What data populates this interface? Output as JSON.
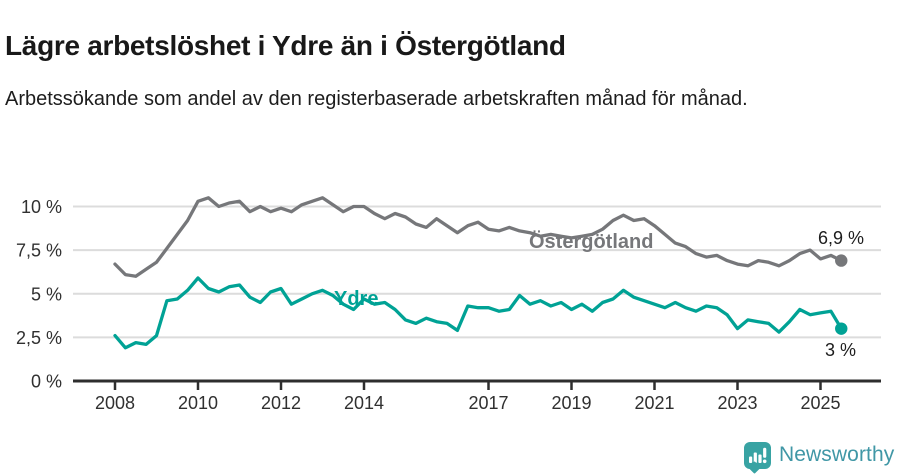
{
  "header": {
    "title": "Lägre arbetslöshet i Ydre än i Östergötland",
    "subtitle": "Arbetssökande som andel av den registerbaserade arbetskraften månad för månad."
  },
  "chart_data": {
    "type": "line",
    "unit": "%",
    "grid": "horizontal",
    "legend_position": "inline-labels",
    "ylim": [
      0,
      11
    ],
    "xlim": [
      2008,
      2025.5
    ],
    "yticks": [
      {
        "value": 0,
        "label": "0 %"
      },
      {
        "value": 2.5,
        "label": "2,5 %"
      },
      {
        "value": 5,
        "label": "5 %"
      },
      {
        "value": 7.5,
        "label": "7,5 %"
      },
      {
        "value": 10,
        "label": "10 %"
      }
    ],
    "xticks": [
      {
        "value": 2008,
        "label": "2008"
      },
      {
        "value": 2010,
        "label": "2010"
      },
      {
        "value": 2012,
        "label": "2012"
      },
      {
        "value": 2014,
        "label": "2014"
      },
      {
        "value": 2017,
        "label": "2017"
      },
      {
        "value": 2019,
        "label": "2019"
      },
      {
        "value": 2021,
        "label": "2021"
      },
      {
        "value": 2023,
        "label": "2023"
      },
      {
        "value": 2025,
        "label": "2025"
      }
    ],
    "x": [
      2008,
      2008.25,
      2008.5,
      2008.75,
      2009,
      2009.25,
      2009.5,
      2009.75,
      2010,
      2010.25,
      2010.5,
      2010.75,
      2011,
      2011.25,
      2011.5,
      2011.75,
      2012,
      2012.25,
      2012.5,
      2012.75,
      2013,
      2013.25,
      2013.5,
      2013.75,
      2014,
      2014.25,
      2014.5,
      2014.75,
      2015,
      2015.25,
      2015.5,
      2015.75,
      2016,
      2016.25,
      2016.5,
      2016.75,
      2017,
      2017.25,
      2017.5,
      2017.75,
      2018,
      2018.25,
      2018.5,
      2018.75,
      2019,
      2019.25,
      2019.5,
      2019.75,
      2020,
      2020.25,
      2020.5,
      2020.75,
      2021,
      2021.25,
      2021.5,
      2021.75,
      2022,
      2022.25,
      2022.5,
      2022.75,
      2023,
      2023.25,
      2023.5,
      2023.75,
      2024,
      2024.25,
      2024.5,
      2024.75,
      2025,
      2025.25,
      2025.5
    ],
    "series": [
      {
        "name": "Östergötland",
        "color": "#76777a",
        "end_label": "6,9 %",
        "end_value": 6.9,
        "values": [
          6.7,
          6.1,
          6.0,
          6.4,
          6.8,
          7.6,
          8.4,
          9.2,
          10.3,
          10.5,
          10.0,
          10.2,
          10.3,
          9.7,
          10.0,
          9.7,
          9.9,
          9.7,
          10.1,
          10.3,
          10.5,
          10.1,
          9.7,
          10.0,
          10.0,
          9.6,
          9.3,
          9.6,
          9.4,
          9.0,
          8.8,
          9.3,
          8.9,
          8.5,
          8.9,
          9.1,
          8.7,
          8.6,
          8.8,
          8.6,
          8.5,
          8.3,
          8.4,
          8.3,
          8.2,
          8.3,
          8.4,
          8.7,
          9.2,
          9.5,
          9.2,
          9.3,
          8.9,
          8.4,
          7.9,
          7.7,
          7.3,
          7.1,
          7.2,
          6.9,
          6.7,
          6.6,
          6.9,
          6.8,
          6.6,
          6.9,
          7.3,
          7.5,
          7.0,
          7.2,
          6.9
        ]
      },
      {
        "name": "Ydre",
        "color": "#00a295",
        "end_label": "3 %",
        "end_value": 3.0,
        "values": [
          2.6,
          1.9,
          2.2,
          2.1,
          2.6,
          4.6,
          4.7,
          5.2,
          5.9,
          5.3,
          5.1,
          5.4,
          5.5,
          4.8,
          4.5,
          5.1,
          5.3,
          4.4,
          4.7,
          5.0,
          5.2,
          4.9,
          4.4,
          4.1,
          4.7,
          4.4,
          4.5,
          4.1,
          3.5,
          3.3,
          3.6,
          3.4,
          3.3,
          2.9,
          4.3,
          4.2,
          4.2,
          4.0,
          4.1,
          4.9,
          4.4,
          4.6,
          4.3,
          4.5,
          4.1,
          4.4,
          4.0,
          4.5,
          4.7,
          5.2,
          4.8,
          4.6,
          4.4,
          4.2,
          4.5,
          4.2,
          4.0,
          4.3,
          4.2,
          3.8,
          3.0,
          3.5,
          3.4,
          3.3,
          2.8,
          3.4,
          4.1,
          3.8,
          3.9,
          4.0,
          3.0
        ]
      }
    ]
  },
  "footer": {
    "brand": "Newsworthy",
    "logo_icon": "bar-chart-badge-icon",
    "brand_color": "#38a3a3"
  }
}
